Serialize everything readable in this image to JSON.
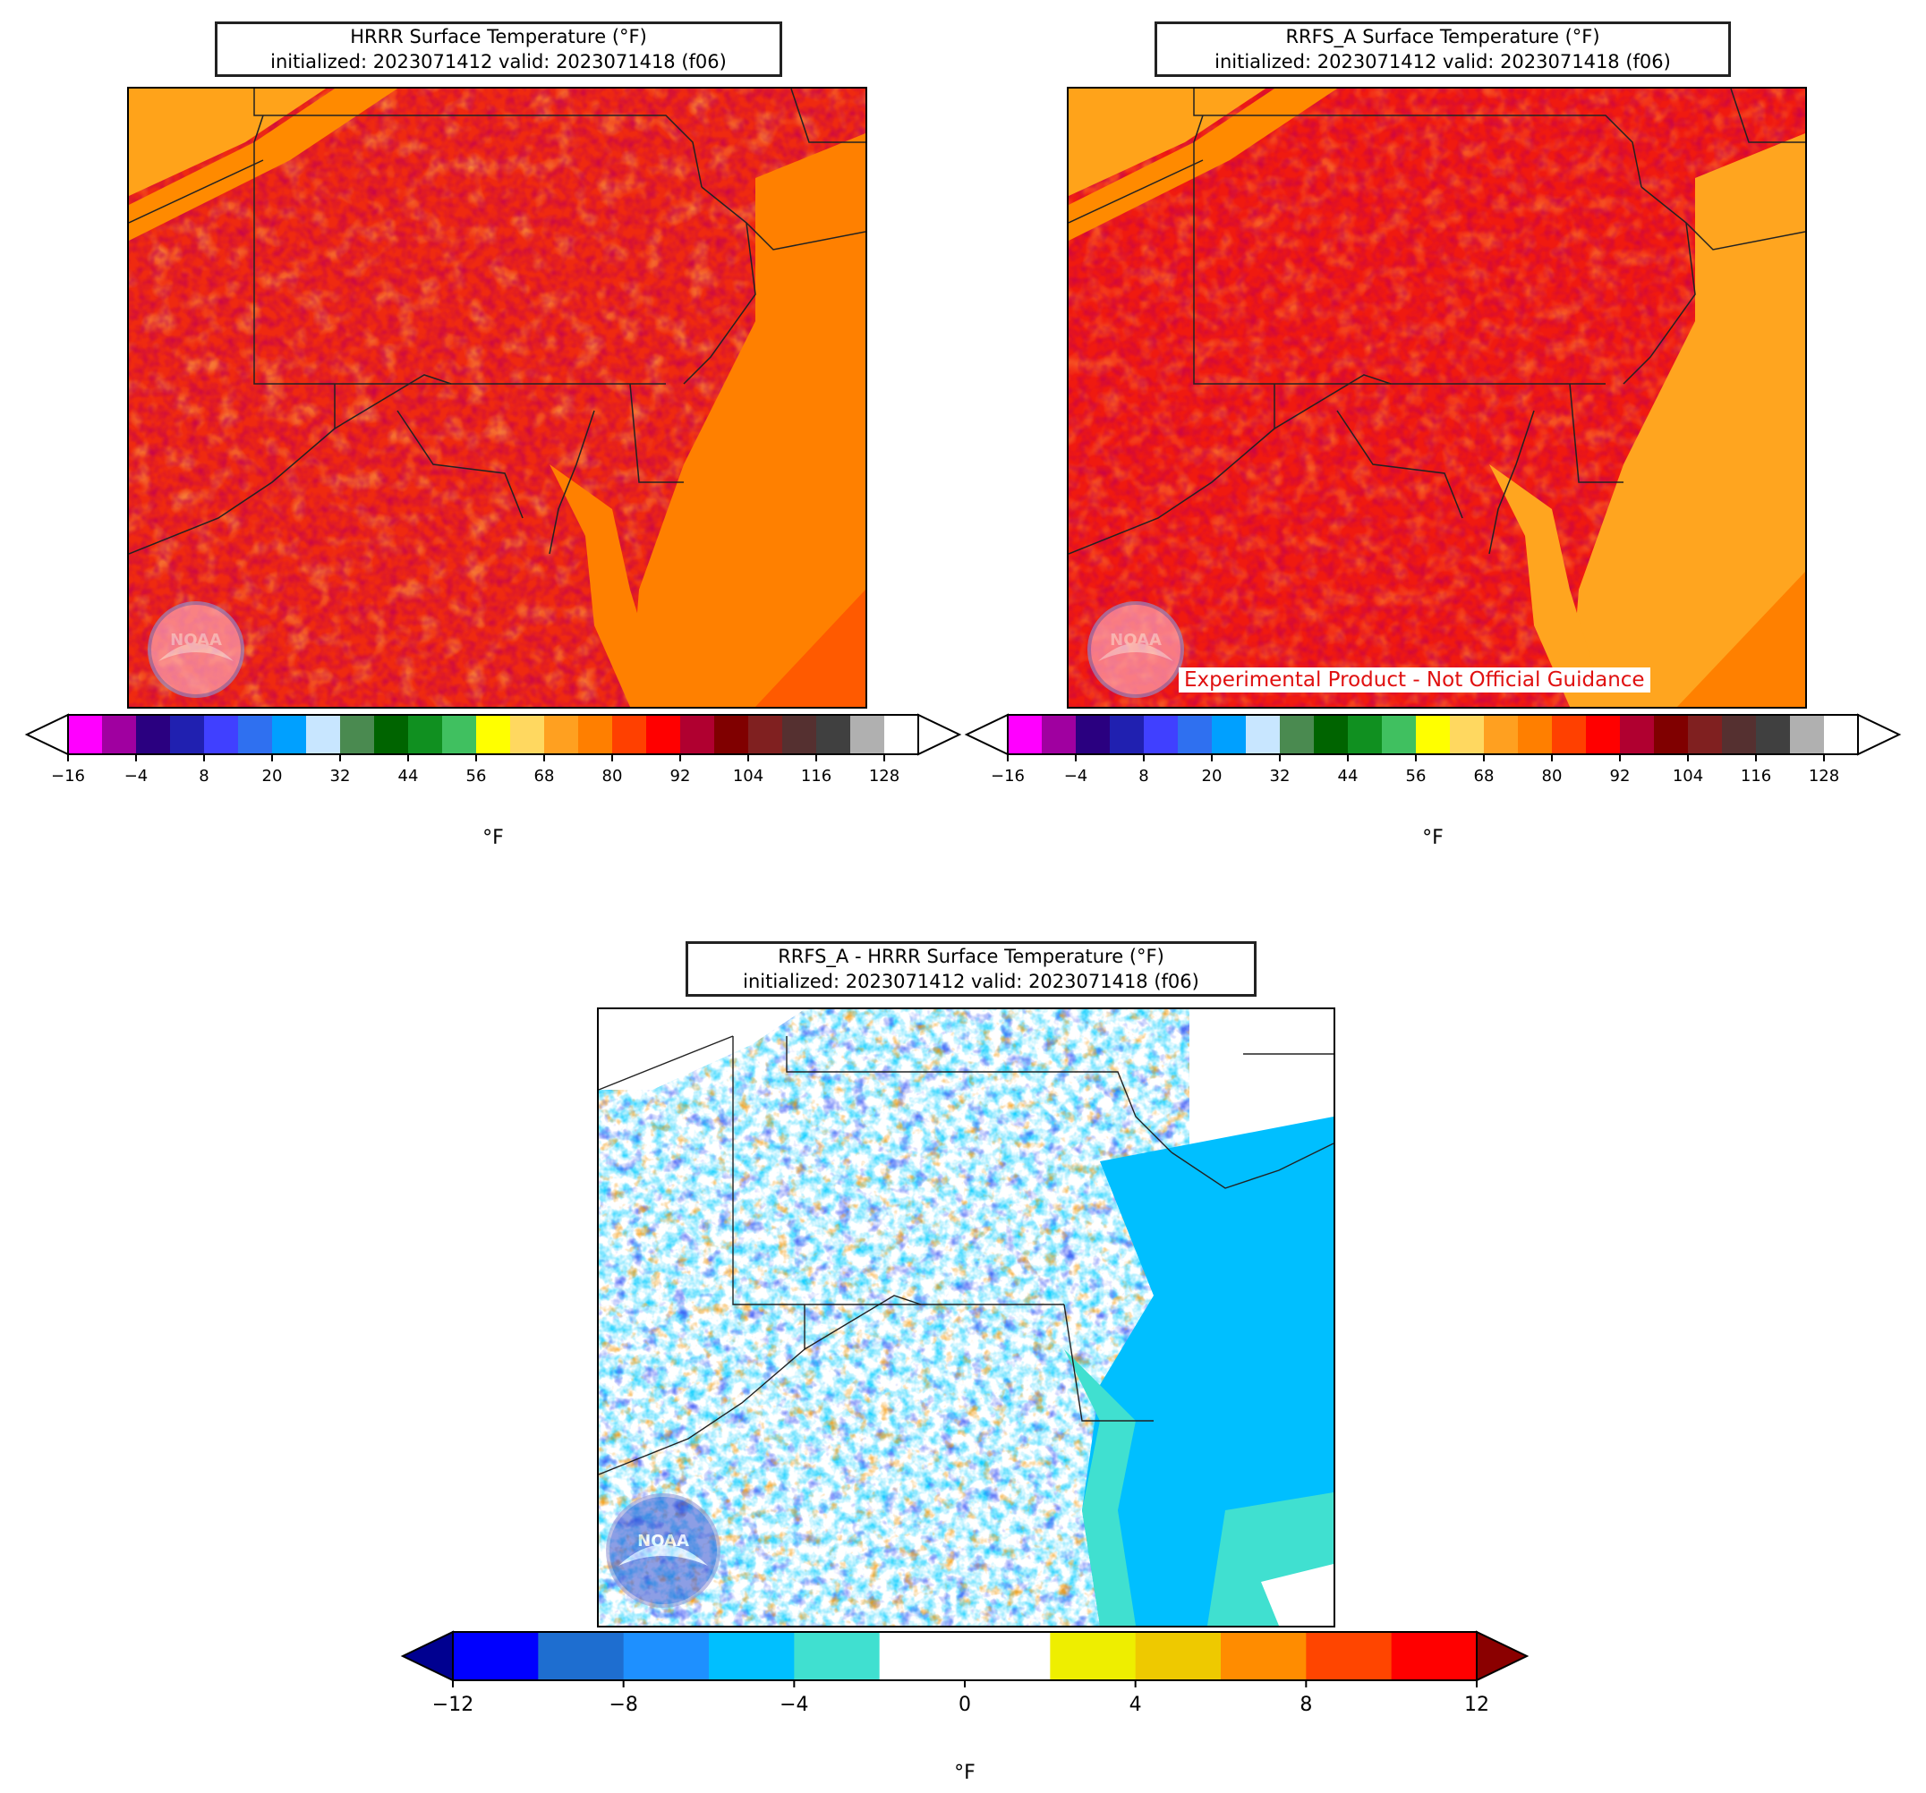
{
  "panels": [
    {
      "id": "hrrr",
      "title_line1": "HRRR Surface Temperature (°F)",
      "title_line2": "initialized: 2023071412 valid: 2023071418 (f06)",
      "logo_text": "NOAA"
    },
    {
      "id": "rrfs",
      "title_line1": "RRFS_A Surface Temperature (°F)",
      "title_line2": "initialized: 2023071412 valid: 2023071418 (f06)",
      "logo_text": "NOAA",
      "annotation": "Experimental Product - Not Official Guidance"
    },
    {
      "id": "diff",
      "title_line1": "RRFS_A - HRRR Surface Temperature (°F)",
      "title_line2": "initialized: 2023071412 valid: 2023071418 (f06)",
      "logo_text": "NOAA"
    }
  ],
  "colorbars": {
    "temperature": {
      "label": "°F",
      "ticks": [
        "−16",
        "−4",
        "8",
        "20",
        "32",
        "44",
        "56",
        "68",
        "80",
        "92",
        "104",
        "116",
        "128"
      ],
      "under_color": "#ffffff",
      "over_color": "#ffffff",
      "colors": [
        "#ff00ff",
        "#a000a0",
        "#2a0080",
        "#2020b0",
        "#4040ff",
        "#2f70f0",
        "#00a0ff",
        "#c8e6ff",
        "#4a8a50",
        "#006400",
        "#109020",
        "#40c060",
        "#ffff00",
        "#ffd860",
        "#ffa020",
        "#ff7f00",
        "#ff4000",
        "#ff0000",
        "#b00030",
        "#800000",
        "#802020",
        "#553030",
        "#404040",
        "#b0b0b0",
        "#ffffff"
      ]
    },
    "difference": {
      "label": "°F",
      "ticks": [
        "−12",
        "−8",
        "−4",
        "0",
        "4",
        "8",
        "12"
      ],
      "under_color": "#000090",
      "over_color": "#8b0000",
      "colors": [
        "#0000ff",
        "#1e6ed0",
        "#1e90ff",
        "#00bfff",
        "#40e0d0",
        "#ffffff",
        "#ffffff",
        "#eeee00",
        "#eec900",
        "#ff8c00",
        "#ff4500",
        "#ff0000"
      ]
    }
  },
  "chart_data": [
    {
      "type": "heatmap",
      "title": "HRRR Surface Temperature (°F)",
      "subtitle": "initialized: 2023071412 valid: 2023071418 (f06)",
      "colorbar_label": "°F",
      "colorbar_range": [
        -16,
        128
      ],
      "colorbar_ticks": [
        -16,
        -4,
        8,
        20,
        32,
        44,
        56,
        68,
        80,
        92,
        104,
        116,
        128
      ]
    },
    {
      "type": "heatmap",
      "title": "RRFS_A Surface Temperature (°F)",
      "subtitle": "initialized: 2023071412 valid: 2023071418 (f06)",
      "colorbar_label": "°F",
      "colorbar_range": [
        -16,
        128
      ],
      "colorbar_ticks": [
        -16,
        -4,
        8,
        20,
        32,
        44,
        56,
        68,
        80,
        92,
        104,
        116,
        128
      ]
    },
    {
      "type": "heatmap",
      "title": "RRFS_A - HRRR Surface Temperature (°F)",
      "subtitle": "initialized: 2023071412 valid: 2023071418 (f06)",
      "colorbar_label": "°F",
      "colorbar_range": [
        -12,
        12
      ],
      "colorbar_ticks": [
        -12,
        -8,
        -4,
        0,
        4,
        8,
        12
      ]
    }
  ]
}
